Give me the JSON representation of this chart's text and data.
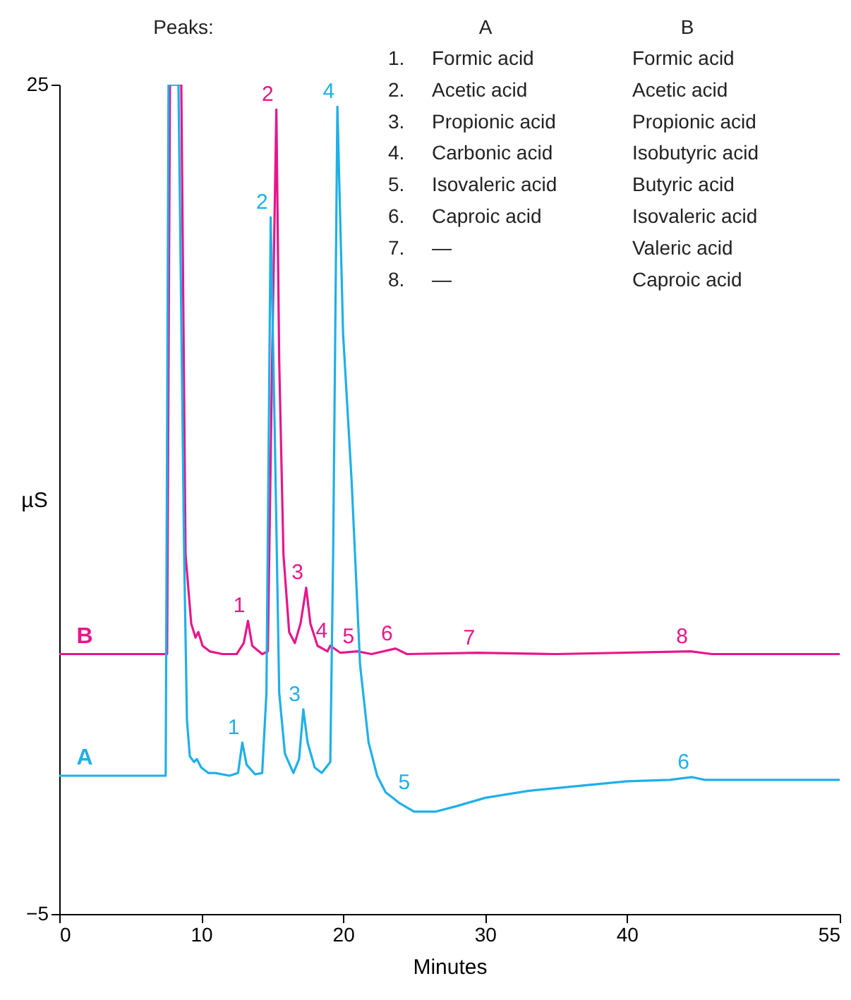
{
  "chart_data": {
    "type": "line",
    "xlabel": "Minutes",
    "ylabel": "µS",
    "xlim": [
      0,
      55
    ],
    "xticks": [
      0,
      10,
      20,
      30,
      40,
      55
    ],
    "ylim": [
      -5,
      25
    ],
    "yticks": [
      -5,
      25
    ],
    "grid": false,
    "legend": false,
    "marker": "none",
    "line_style": "solid",
    "series": [
      {
        "name": "B",
        "color": "#e8168a",
        "x": [
          0,
          7.6,
          7.8,
          8.6,
          8.9,
          9.3,
          9.6,
          9.8,
          10.1,
          10.6,
          11.5,
          12.5,
          13.0,
          13.3,
          13.6,
          14.3,
          14.7,
          15.0,
          15.3,
          15.5,
          15.8,
          16.2,
          16.6,
          17.0,
          17.4,
          17.7,
          18.2,
          18.9,
          19.1,
          19.8,
          21.0,
          22.0,
          23.7,
          24.5,
          29.5,
          35,
          44.5,
          46,
          55
        ],
        "values": [
          4.4,
          4.4,
          25,
          25,
          8,
          5.5,
          5.0,
          5.2,
          4.7,
          4.5,
          4.4,
          4.4,
          4.8,
          5.6,
          4.7,
          4.4,
          4.5,
          15,
          24.1,
          15,
          8,
          5.2,
          4.8,
          5.5,
          6.8,
          5.5,
          4.7,
          4.5,
          4.7,
          4.45,
          4.5,
          4.4,
          4.6,
          4.4,
          4.45,
          4.4,
          4.5,
          4.4,
          4.4
        ]
      },
      {
        "name": "A",
        "color": "#1eb0e8",
        "x": [
          0,
          7.5,
          7.7,
          8.4,
          8.8,
          9.0,
          9.2,
          9.5,
          9.7,
          10.0,
          10.5,
          11.0,
          12.0,
          12.6,
          12.9,
          13.2,
          13.8,
          14.3,
          14.6,
          14.9,
          15.2,
          15.5,
          15.9,
          16.5,
          16.9,
          17.2,
          17.5,
          18.0,
          18.5,
          19.1,
          19.3,
          19.6,
          20.0,
          20.6,
          21.2,
          21.8,
          22.4,
          23.0,
          23.5,
          24.0,
          25.0,
          26.5,
          28,
          30,
          33,
          36,
          40,
          43,
          44.6,
          45.5,
          50,
          55
        ],
        "values": [
          0,
          0,
          25,
          25,
          8,
          2,
          0.7,
          0.5,
          0.6,
          0.3,
          0.1,
          0.1,
          0.0,
          0.1,
          1.2,
          0.4,
          0.05,
          0.1,
          3,
          20.2,
          12,
          3,
          0.8,
          0.1,
          0.6,
          2.4,
          1.2,
          0.3,
          0.1,
          0.5,
          8,
          24.2,
          16,
          10.7,
          4,
          1.2,
          0,
          -0.6,
          -0.8,
          -1.0,
          -1.3,
          -1.3,
          -1.1,
          -0.8,
          -0.55,
          -0.4,
          -0.2,
          -0.15,
          -0.05,
          -0.15,
          -0.15,
          -0.15
        ]
      }
    ],
    "annotations": [
      "Peaks:",
      "A",
      "B",
      "1.",
      "Formic acid",
      "Formic acid",
      "2.",
      "Acetic acid",
      "Acetic acid",
      "3.",
      "Propionic acid",
      "Propionic acid",
      "4.",
      "Carbonic acid",
      "Isobutyric acid",
      "5.",
      "Isovaleric acid",
      "Butyric acid",
      "6.",
      "Caproic acid",
      "Isovaleric acid",
      "7.",
      "—",
      "Valeric acid",
      "8.",
      "—",
      "Caproic acid",
      {
        "text": "1",
        "x": 13.3,
        "y": 5.6
      },
      {
        "text": "2",
        "x": 15.3,
        "y": 24.1
      },
      {
        "text": "3",
        "x": 17.4,
        "y": 6.8
      },
      {
        "text": "4",
        "x": 19.1,
        "y": 4.7
      },
      {
        "text": "5",
        "x": 21.0,
        "y": 4.5
      },
      {
        "text": "6",
        "x": 23.7,
        "y": 4.6
      },
      {
        "text": "7",
        "x": 29.5,
        "y": 4.45
      },
      {
        "text": "8",
        "x": 44.5,
        "y": 4.5
      },
      {
        "text": "1",
        "x": 12.9,
        "y": 1.2
      },
      {
        "text": "2",
        "x": 14.9,
        "y": 20.2
      },
      {
        "text": "3",
        "x": 17.2,
        "y": 2.4
      },
      {
        "text": "4",
        "x": 19.6,
        "y": 24.2
      },
      {
        "text": "5",
        "x": 23.5,
        "y": -0.8
      },
      {
        "text": "6",
        "x": 44.6,
        "y": -0.05
      }
    ]
  }
}
